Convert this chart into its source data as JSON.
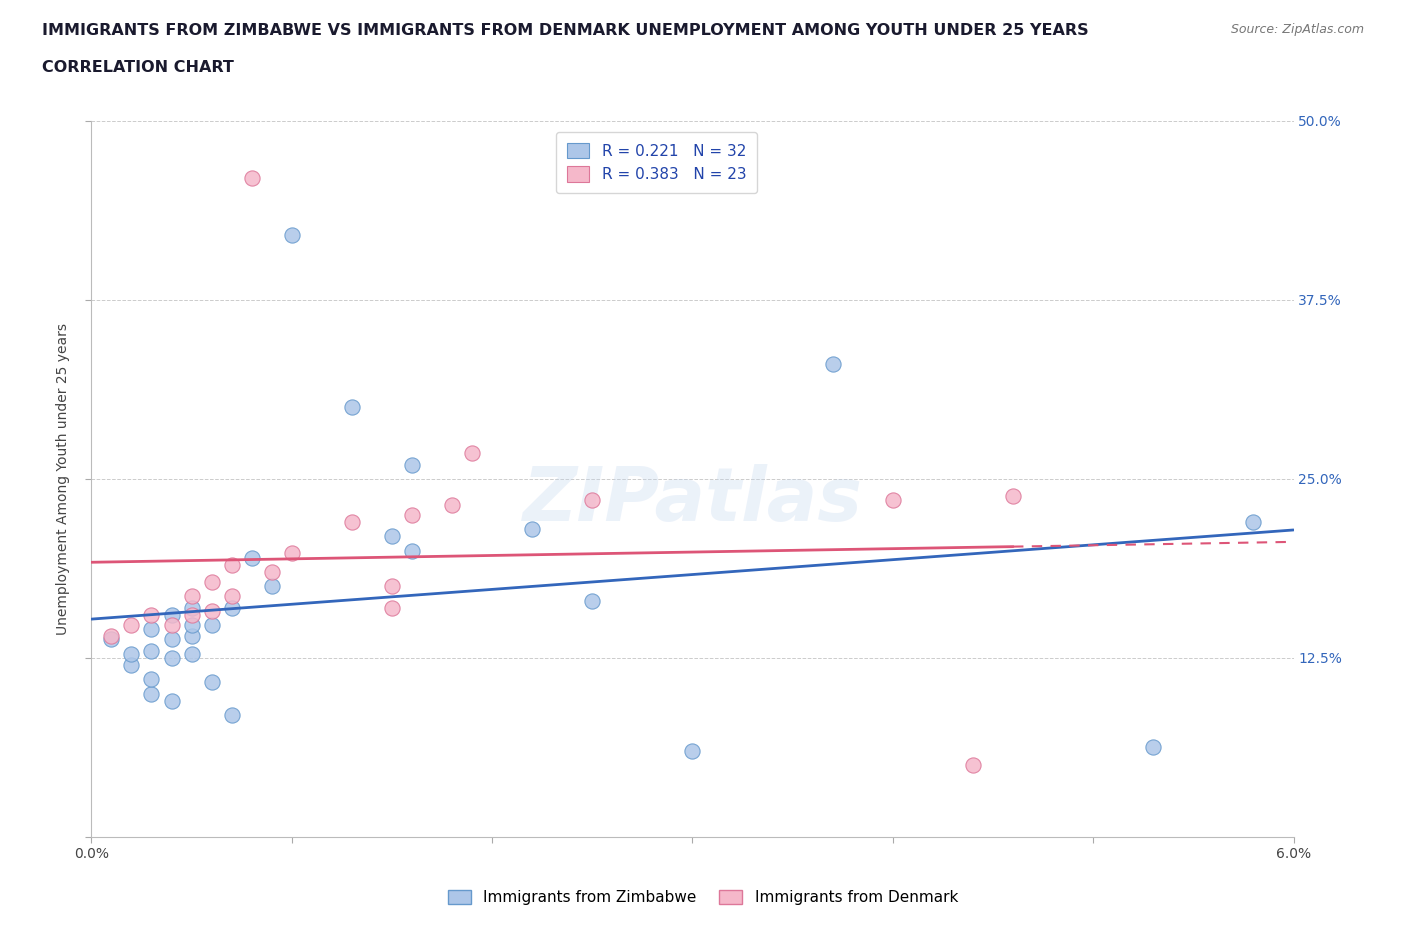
{
  "title_line1": "IMMIGRANTS FROM ZIMBABWE VS IMMIGRANTS FROM DENMARK UNEMPLOYMENT AMONG YOUTH UNDER 25 YEARS",
  "title_line2": "CORRELATION CHART",
  "source": "Source: ZipAtlas.com",
  "ylabel": "Unemployment Among Youth under 25 years",
  "xlim": [
    0.0,
    0.06
  ],
  "ylim": [
    0.0,
    0.5
  ],
  "xticks": [
    0.0,
    0.01,
    0.02,
    0.03,
    0.04,
    0.05,
    0.06
  ],
  "xticklabels": [
    "0.0%",
    "",
    "",
    "",
    "",
    "",
    "6.0%"
  ],
  "yticks": [
    0.0,
    0.125,
    0.25,
    0.375,
    0.5
  ],
  "yticklabels": [
    "",
    "12.5%",
    "25.0%",
    "37.5%",
    "50.0%"
  ],
  "background_color": "#ffffff",
  "grid_color": "#cccccc",
  "watermark_text": "ZIPatlas",
  "zimbabwe_color": "#adc6e8",
  "zimbabwe_edge_color": "#6699cc",
  "denmark_color": "#f5b8ca",
  "denmark_edge_color": "#dd7799",
  "zimbabwe_line_color": "#3366bb",
  "denmark_line_color": "#dd5577",
  "zimbabwe_R": 0.221,
  "zimbabwe_N": 32,
  "denmark_R": 0.383,
  "denmark_N": 23,
  "zimbabwe_x": [
    0.001,
    0.002,
    0.002,
    0.003,
    0.003,
    0.003,
    0.003,
    0.004,
    0.004,
    0.004,
    0.004,
    0.005,
    0.005,
    0.005,
    0.005,
    0.006,
    0.006,
    0.007,
    0.007,
    0.008,
    0.009,
    0.01,
    0.013,
    0.015,
    0.016,
    0.016,
    0.022,
    0.025,
    0.03,
    0.037,
    0.053,
    0.058
  ],
  "zimbabwe_y": [
    0.138,
    0.12,
    0.128,
    0.1,
    0.11,
    0.13,
    0.145,
    0.095,
    0.125,
    0.138,
    0.155,
    0.128,
    0.14,
    0.148,
    0.16,
    0.108,
    0.148,
    0.085,
    0.16,
    0.195,
    0.175,
    0.42,
    0.3,
    0.21,
    0.2,
    0.26,
    0.215,
    0.165,
    0.06,
    0.33,
    0.063,
    0.22
  ],
  "denmark_x": [
    0.001,
    0.002,
    0.003,
    0.004,
    0.005,
    0.005,
    0.006,
    0.006,
    0.007,
    0.007,
    0.008,
    0.009,
    0.01,
    0.013,
    0.015,
    0.015,
    0.016,
    0.018,
    0.019,
    0.025,
    0.04,
    0.044,
    0.046
  ],
  "denmark_y": [
    0.14,
    0.148,
    0.155,
    0.148,
    0.155,
    0.168,
    0.158,
    0.178,
    0.168,
    0.19,
    0.46,
    0.185,
    0.198,
    0.22,
    0.16,
    0.175,
    0.225,
    0.232,
    0.268,
    0.235,
    0.235,
    0.05,
    0.238
  ]
}
